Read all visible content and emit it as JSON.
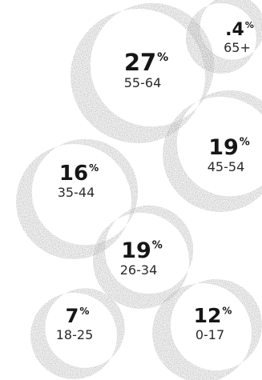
{
  "chart_data": {
    "type": "bubble",
    "title": "",
    "categories": [
      "65+",
      "55-64",
      "45-54",
      "35-44",
      "26-34",
      "18-25",
      "0-17"
    ],
    "values": [
      0.4,
      27,
      19,
      16,
      19,
      7,
      12
    ],
    "points": [
      {
        "category": "65+",
        "value": 0.4,
        "value_label": ".4",
        "unit": "%"
      },
      {
        "category": "55-64",
        "value": 27,
        "value_label": "27",
        "unit": "%"
      },
      {
        "category": "45-54",
        "value": 19,
        "value_label": "19",
        "unit": "%"
      },
      {
        "category": "35-44",
        "value": 16,
        "value_label": "16",
        "unit": "%"
      },
      {
        "category": "26-34",
        "value": 19,
        "value_label": "19",
        "unit": "%"
      },
      {
        "category": "18-25",
        "value": 7,
        "value_label": "7",
        "unit": "%"
      },
      {
        "category": "0-17",
        "value": 12,
        "value_label": "12",
        "unit": "%"
      }
    ],
    "colors": {
      "background": "#ffffff",
      "crescent": "#9a9a9a",
      "text": "#161616",
      "sublabel": "#2a2a2a"
    }
  }
}
